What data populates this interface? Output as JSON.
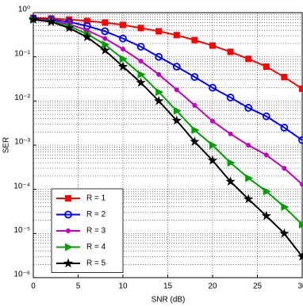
{
  "chart_data": {
    "type": "line",
    "x_label": "SNR (dB)",
    "y_label": "SER",
    "y_scale": "log",
    "grid": true,
    "legend_position": "lower left",
    "x": [
      0,
      2,
      4,
      6,
      8,
      10,
      12,
      14,
      16,
      18,
      20,
      22,
      24,
      26,
      28,
      30
    ],
    "xlim": [
      0,
      30
    ],
    "xticks": [
      0,
      5,
      10,
      15,
      20,
      25,
      30
    ],
    "ylim": [
      1e-06,
      1
    ],
    "yticks": [
      {
        "value": 1e-06,
        "label": "10⁻⁶"
      },
      {
        "value": 1e-05,
        "label": "10⁻⁵"
      },
      {
        "value": 0.0001,
        "label": "10⁻⁴"
      },
      {
        "value": 0.001,
        "label": "10⁻³"
      },
      {
        "value": 0.01,
        "label": "10⁻²"
      },
      {
        "value": 0.1,
        "label": "10⁻¹"
      },
      {
        "value": 1,
        "label": "10⁰"
      }
    ],
    "series": [
      {
        "name": "R = 1",
        "color": "#ff0000",
        "marker": "square",
        "values": [
          0.76,
          0.74,
          0.7,
          0.65,
          0.6,
          0.53,
          0.45,
          0.38,
          0.31,
          0.24,
          0.18,
          0.13,
          0.09,
          0.06,
          0.035,
          0.019
        ]
      },
      {
        "name": "R = 2",
        "color": "#0000ff",
        "marker": "circle",
        "values": [
          0.74,
          0.7,
          0.62,
          0.5,
          0.38,
          0.26,
          0.17,
          0.1,
          0.06,
          0.035,
          0.02,
          0.012,
          0.007,
          0.0045,
          0.0025,
          0.0013
        ]
      },
      {
        "name": "R = 3",
        "color": "#bf00bf",
        "marker": "dot",
        "values": [
          0.72,
          0.66,
          0.55,
          0.4,
          0.26,
          0.15,
          0.08,
          0.04,
          0.018,
          0.008,
          0.0035,
          0.0018,
          0.001,
          0.0006,
          0.0003,
          0.00013
        ]
      },
      {
        "name": "R = 4",
        "color": "#00a000",
        "marker": "triangle",
        "values": [
          0.7,
          0.64,
          0.5,
          0.33,
          0.19,
          0.09,
          0.04,
          0.016,
          0.006,
          0.0022,
          0.001,
          0.0004,
          0.00018,
          9e-05,
          4e-05,
          1.6e-05
        ]
      },
      {
        "name": "R = 5",
        "color": "#000000",
        "marker": "star",
        "values": [
          0.7,
          0.62,
          0.45,
          0.28,
          0.14,
          0.06,
          0.026,
          0.01,
          0.0036,
          0.0012,
          0.00045,
          0.00015,
          6e-05,
          2.5e-05,
          1e-05,
          3e-06
        ]
      }
    ]
  }
}
